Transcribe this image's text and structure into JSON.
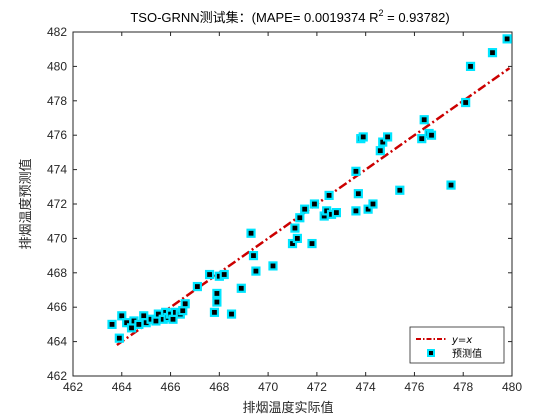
{
  "chart_data": {
    "type": "scatter",
    "title": {
      "prefix": "TSO-GRNN测试集：(MAPE= 0.0019374 R",
      "superscript": "2",
      "suffix": "  = 0.93782)"
    },
    "xlabel": "排烟温度实际值",
    "ylabel": "排烟温度预测值",
    "xlim": [
      462,
      480
    ],
    "ylim": [
      462,
      482
    ],
    "xticks": [
      462,
      464,
      466,
      468,
      470,
      472,
      474,
      476,
      478,
      480
    ],
    "yticks": [
      462,
      464,
      466,
      468,
      470,
      472,
      474,
      476,
      478,
      480,
      482
    ],
    "grid": false,
    "legend_position": "bottom-right",
    "series": [
      {
        "name": "y=x",
        "kind": "line",
        "color": "#cc0000",
        "x": [
          463.8,
          479.9
        ],
        "y": [
          463.8,
          479.9
        ]
      },
      {
        "name": "预测值",
        "kind": "marker",
        "marker_fill": "#000000",
        "marker_edge": "#00e5ff",
        "x": [
          463.6,
          463.9,
          464.0,
          464.2,
          464.4,
          464.5,
          464.7,
          464.9,
          465.0,
          465.2,
          465.4,
          465.5,
          465.7,
          465.8,
          465.9,
          466.0,
          466.1,
          466.2,
          466.4,
          466.5,
          466.6,
          467.1,
          467.6,
          467.8,
          467.9,
          467.9,
          468.0,
          468.2,
          468.5,
          468.9,
          469.3,
          469.4,
          469.5,
          470.2,
          471.0,
          471.1,
          471.2,
          471.3,
          471.5,
          471.8,
          471.9,
          472.3,
          472.4,
          472.5,
          472.6,
          472.8,
          473.6,
          473.6,
          473.7,
          473.8,
          473.9,
          474.1,
          474.3,
          474.6,
          474.7,
          474.9,
          475.4,
          476.3,
          476.4,
          476.6,
          476.7,
          477.5,
          478.1,
          478.3,
          479.2,
          479.8
        ],
        "y": [
          465.0,
          464.2,
          465.5,
          465.1,
          464.8,
          465.2,
          465.0,
          465.5,
          465.1,
          465.3,
          465.2,
          465.6,
          465.3,
          465.7,
          465.4,
          465.6,
          465.3,
          465.7,
          465.6,
          465.8,
          466.2,
          467.2,
          467.9,
          465.7,
          466.3,
          466.8,
          467.8,
          467.9,
          465.6,
          467.1,
          470.3,
          469.0,
          468.1,
          468.4,
          469.7,
          470.6,
          470.0,
          471.2,
          471.7,
          469.7,
          472.0,
          471.3,
          471.6,
          472.5,
          471.4,
          471.5,
          471.6,
          473.9,
          472.6,
          475.8,
          475.9,
          471.7,
          472.0,
          475.1,
          475.6,
          475.9,
          472.8,
          475.8,
          476.9,
          476.1,
          476.0,
          473.1,
          477.9,
          480.0,
          480.8,
          481.6
        ]
      }
    ]
  }
}
